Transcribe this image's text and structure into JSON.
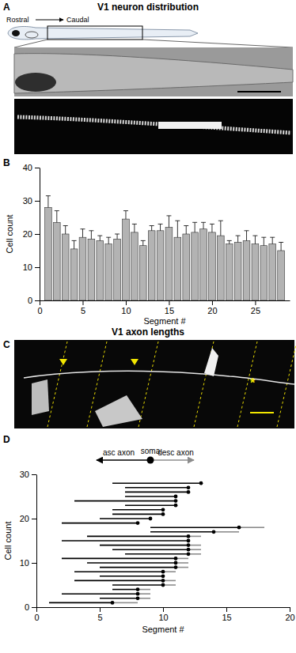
{
  "chart_data": [
    {
      "type": "image",
      "title": "V1 neuron distribution",
      "annotations": [
        "A",
        "Rostral",
        "Caudal"
      ]
    },
    {
      "type": "bar",
      "annotations": [
        "B"
      ],
      "x_label": "Segment #",
      "y_label": "Cell count",
      "x": [
        1,
        2,
        3,
        4,
        5,
        6,
        7,
        8,
        9,
        10,
        11,
        12,
        13,
        14,
        15,
        16,
        17,
        18,
        19,
        20,
        21,
        22,
        23,
        24,
        25,
        26,
        27,
        28
      ],
      "values": [
        28,
        23.5,
        20,
        15.5,
        19,
        18.5,
        18,
        17,
        18.5,
        24.5,
        20.5,
        16.5,
        21,
        21,
        22,
        19,
        20,
        20.5,
        21.5,
        20.5,
        19.5,
        17,
        17.5,
        18,
        17,
        16.5,
        17,
        15
      ],
      "errors": [
        3.5,
        3.5,
        2.5,
        2.5,
        2.5,
        2.5,
        1.5,
        2,
        1.5,
        2.5,
        2.5,
        1.5,
        1.5,
        2,
        3.5,
        5,
        2.5,
        3,
        2,
        2.5,
        4.5,
        1,
        2,
        3,
        2.5,
        2.5,
        2,
        2.5
      ],
      "color": "#b3b3b3",
      "xlim": [
        0,
        29
      ],
      "xticks": [
        0,
        5,
        10,
        15,
        20,
        25
      ],
      "ylim": [
        0,
        40
      ],
      "yticks": [
        0,
        10,
        20,
        30,
        40
      ]
    },
    {
      "type": "image",
      "title": "V1 axon lengths",
      "annotations": [
        "C",
        "*"
      ]
    },
    {
      "type": "range",
      "orientation": "horizontal",
      "annotations": [
        "D"
      ],
      "x_label": "Segment #",
      "y_label": "Cell count",
      "legend": "top",
      "y": [
        1,
        2,
        3,
        4,
        5,
        6,
        7,
        8,
        9,
        10,
        11,
        12,
        13,
        14,
        15,
        16,
        17,
        18,
        19,
        20,
        21,
        22,
        23,
        24,
        25,
        26,
        27,
        28
      ],
      "series": [
        {
          "name": "asc axon",
          "color": "#000000",
          "values": [
            1,
            5,
            2,
            6,
            6,
            3,
            5,
            3,
            5,
            4,
            2,
            7,
            6,
            5,
            2,
            4,
            9,
            9,
            2,
            5,
            6,
            6,
            7,
            3,
            7,
            7,
            7,
            6
          ]
        },
        {
          "name": "soma",
          "color": "#000000",
          "values": [
            6,
            8,
            8,
            8,
            10,
            10,
            10,
            10,
            11,
            11,
            11,
            12,
            12,
            12,
            12,
            12,
            14,
            16,
            8,
            9,
            10,
            10,
            11,
            11,
            11,
            12,
            12,
            13
          ]
        },
        {
          "name": "desc axon",
          "color": "#8c8c8c",
          "values": [
            8,
            9,
            9,
            9,
            11,
            11,
            null,
            11,
            12,
            12,
            12,
            13,
            13,
            13,
            null,
            13,
            16,
            18,
            null,
            null,
            null,
            null,
            null,
            null,
            null,
            null,
            null,
            null
          ]
        }
      ],
      "xlim": [
        0,
        20
      ],
      "xticks": [
        0,
        5,
        10,
        15,
        20
      ],
      "ylim": [
        0,
        30
      ],
      "yticks": [
        0,
        10,
        20,
        30
      ]
    }
  ]
}
